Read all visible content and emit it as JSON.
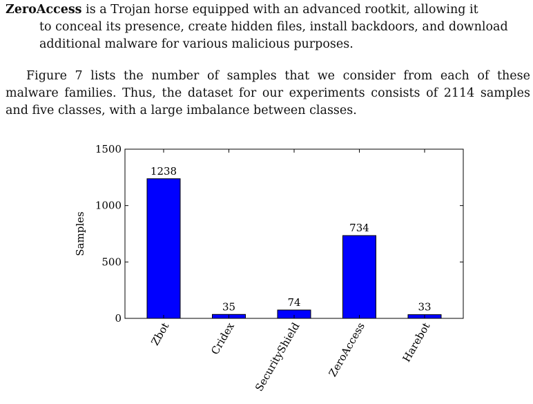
{
  "paragraph1": {
    "term": "ZeroAccess",
    "text_line1": " is a Trojan horse equipped with an advanced rootkit, allowing it",
    "text_line2": "to conceal its presence, create hidden files, install backdoors, and download",
    "text_line3": "additional malware for various malicious purposes."
  },
  "paragraph2": {
    "text": "Figure 7 lists the number of samples that we consider from each of these malware families. Thus, the dataset for our experiments consists of 2114 samples and five classes, with a large imbalance between classes."
  },
  "chart_data": {
    "type": "bar",
    "categories": [
      "Zbot",
      "Cridex",
      "SecurityShield",
      "ZeroAccess",
      "Harebot"
    ],
    "values": [
      1238,
      35,
      74,
      734,
      33
    ],
    "data_labels": [
      "1238",
      "35",
      "74",
      "734",
      "33"
    ],
    "ylabel": "Samples",
    "xlabel": "",
    "ylim": [
      0,
      1500
    ],
    "yticks": [
      0,
      500,
      1000,
      1500
    ],
    "bar_color": "#0000ff",
    "grid": false
  }
}
